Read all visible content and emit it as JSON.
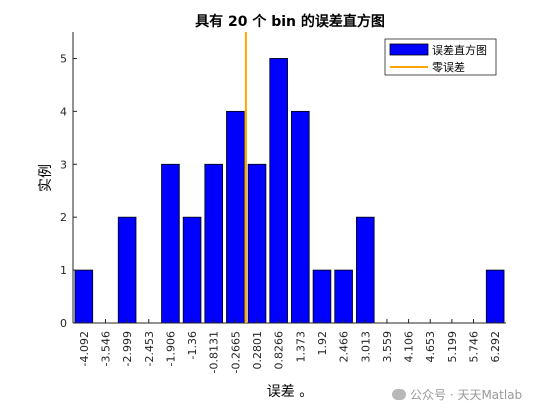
{
  "chart_data": {
    "type": "bar",
    "title": "具有 20 个 bin 的误差直方图",
    "xlabel": "误差 。",
    "ylabel": "实例",
    "categories": [
      "-4.092",
      "-3.546",
      "-2.999",
      "-2.453",
      "-1.906",
      "-1.36",
      "-0.8131",
      "-0.2665",
      "0.2801",
      "0.8266",
      "1.373",
      "1.92",
      "2.466",
      "3.013",
      "3.559",
      "4.106",
      "4.653",
      "5.199",
      "5.746",
      "6.292"
    ],
    "values": [
      1,
      0,
      2,
      0,
      3,
      2,
      3,
      4,
      3,
      5,
      4,
      1,
      1,
      2,
      0,
      0,
      0,
      0,
      0,
      1
    ],
    "ylim": [
      0,
      5.5
    ],
    "yticks": [
      0,
      1,
      2,
      3,
      4,
      5
    ],
    "zero_error_x": 0,
    "bin_width": 0.5466,
    "series": [
      {
        "name": "误差直方图",
        "color": "#0000ff"
      },
      {
        "name": "零误差",
        "color": "#ffa500"
      }
    ],
    "legend_position": "top-right",
    "grid": false
  },
  "watermark": {
    "text": "公众号 · 天天Matlab",
    "icon": "wechat-icon"
  }
}
